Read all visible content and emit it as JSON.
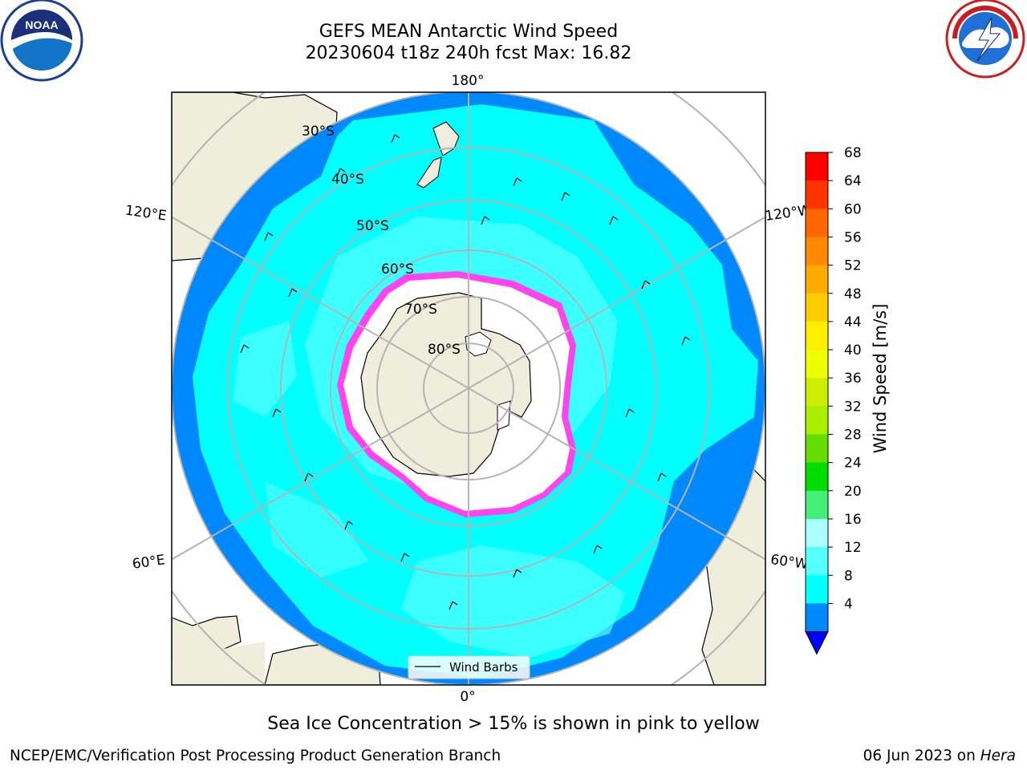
{
  "header": {
    "title_line1": "GEFS MEAN Antarctic Wind Speed",
    "title_line2": "20230604 t18z 240h fcst   Max: 16.82"
  },
  "logos": {
    "left": "NOAA",
    "right": "NATIONAL WEATHER SERVICE"
  },
  "map": {
    "projection": "south-polar-stereographic",
    "lon_labels": {
      "top": "180°",
      "bottom": "0°",
      "upper_left": "120°E",
      "upper_right": "120°W",
      "lower_left": "60°E",
      "lower_right": "60°W"
    },
    "lat_labels": [
      "30°S",
      "40°S",
      "50°S",
      "60°S",
      "70°S",
      "80°S"
    ],
    "legend_label": "Wind Barbs"
  },
  "colorbar": {
    "label": "Wind Speed [m/s]",
    "ticks": [
      "68",
      "64",
      "60",
      "56",
      "52",
      "48",
      "44",
      "40",
      "36",
      "32",
      "28",
      "24",
      "20",
      "16",
      "12",
      "8",
      "4"
    ],
    "colors": [
      "#ff0000",
      "#ff3300",
      "#ff6600",
      "#ff8800",
      "#ffaa00",
      "#ffcc00",
      "#ffee00",
      "#eeff00",
      "#ccee00",
      "#aaee00",
      "#66dd00",
      "#00dd00",
      "#44ee77",
      "#aaffff",
      "#55ffff",
      "#00ffff",
      "#0088ff"
    ],
    "extend_color": "#0000ff"
  },
  "caption": "Sea Ice Concentration > 15% is shown in pink to yellow",
  "footer": {
    "left": "NCEP/EMC/Verification Post Processing Product Generation Branch",
    "right_prefix": "06 Jun 2023 on ",
    "right_host": "Hera"
  }
}
